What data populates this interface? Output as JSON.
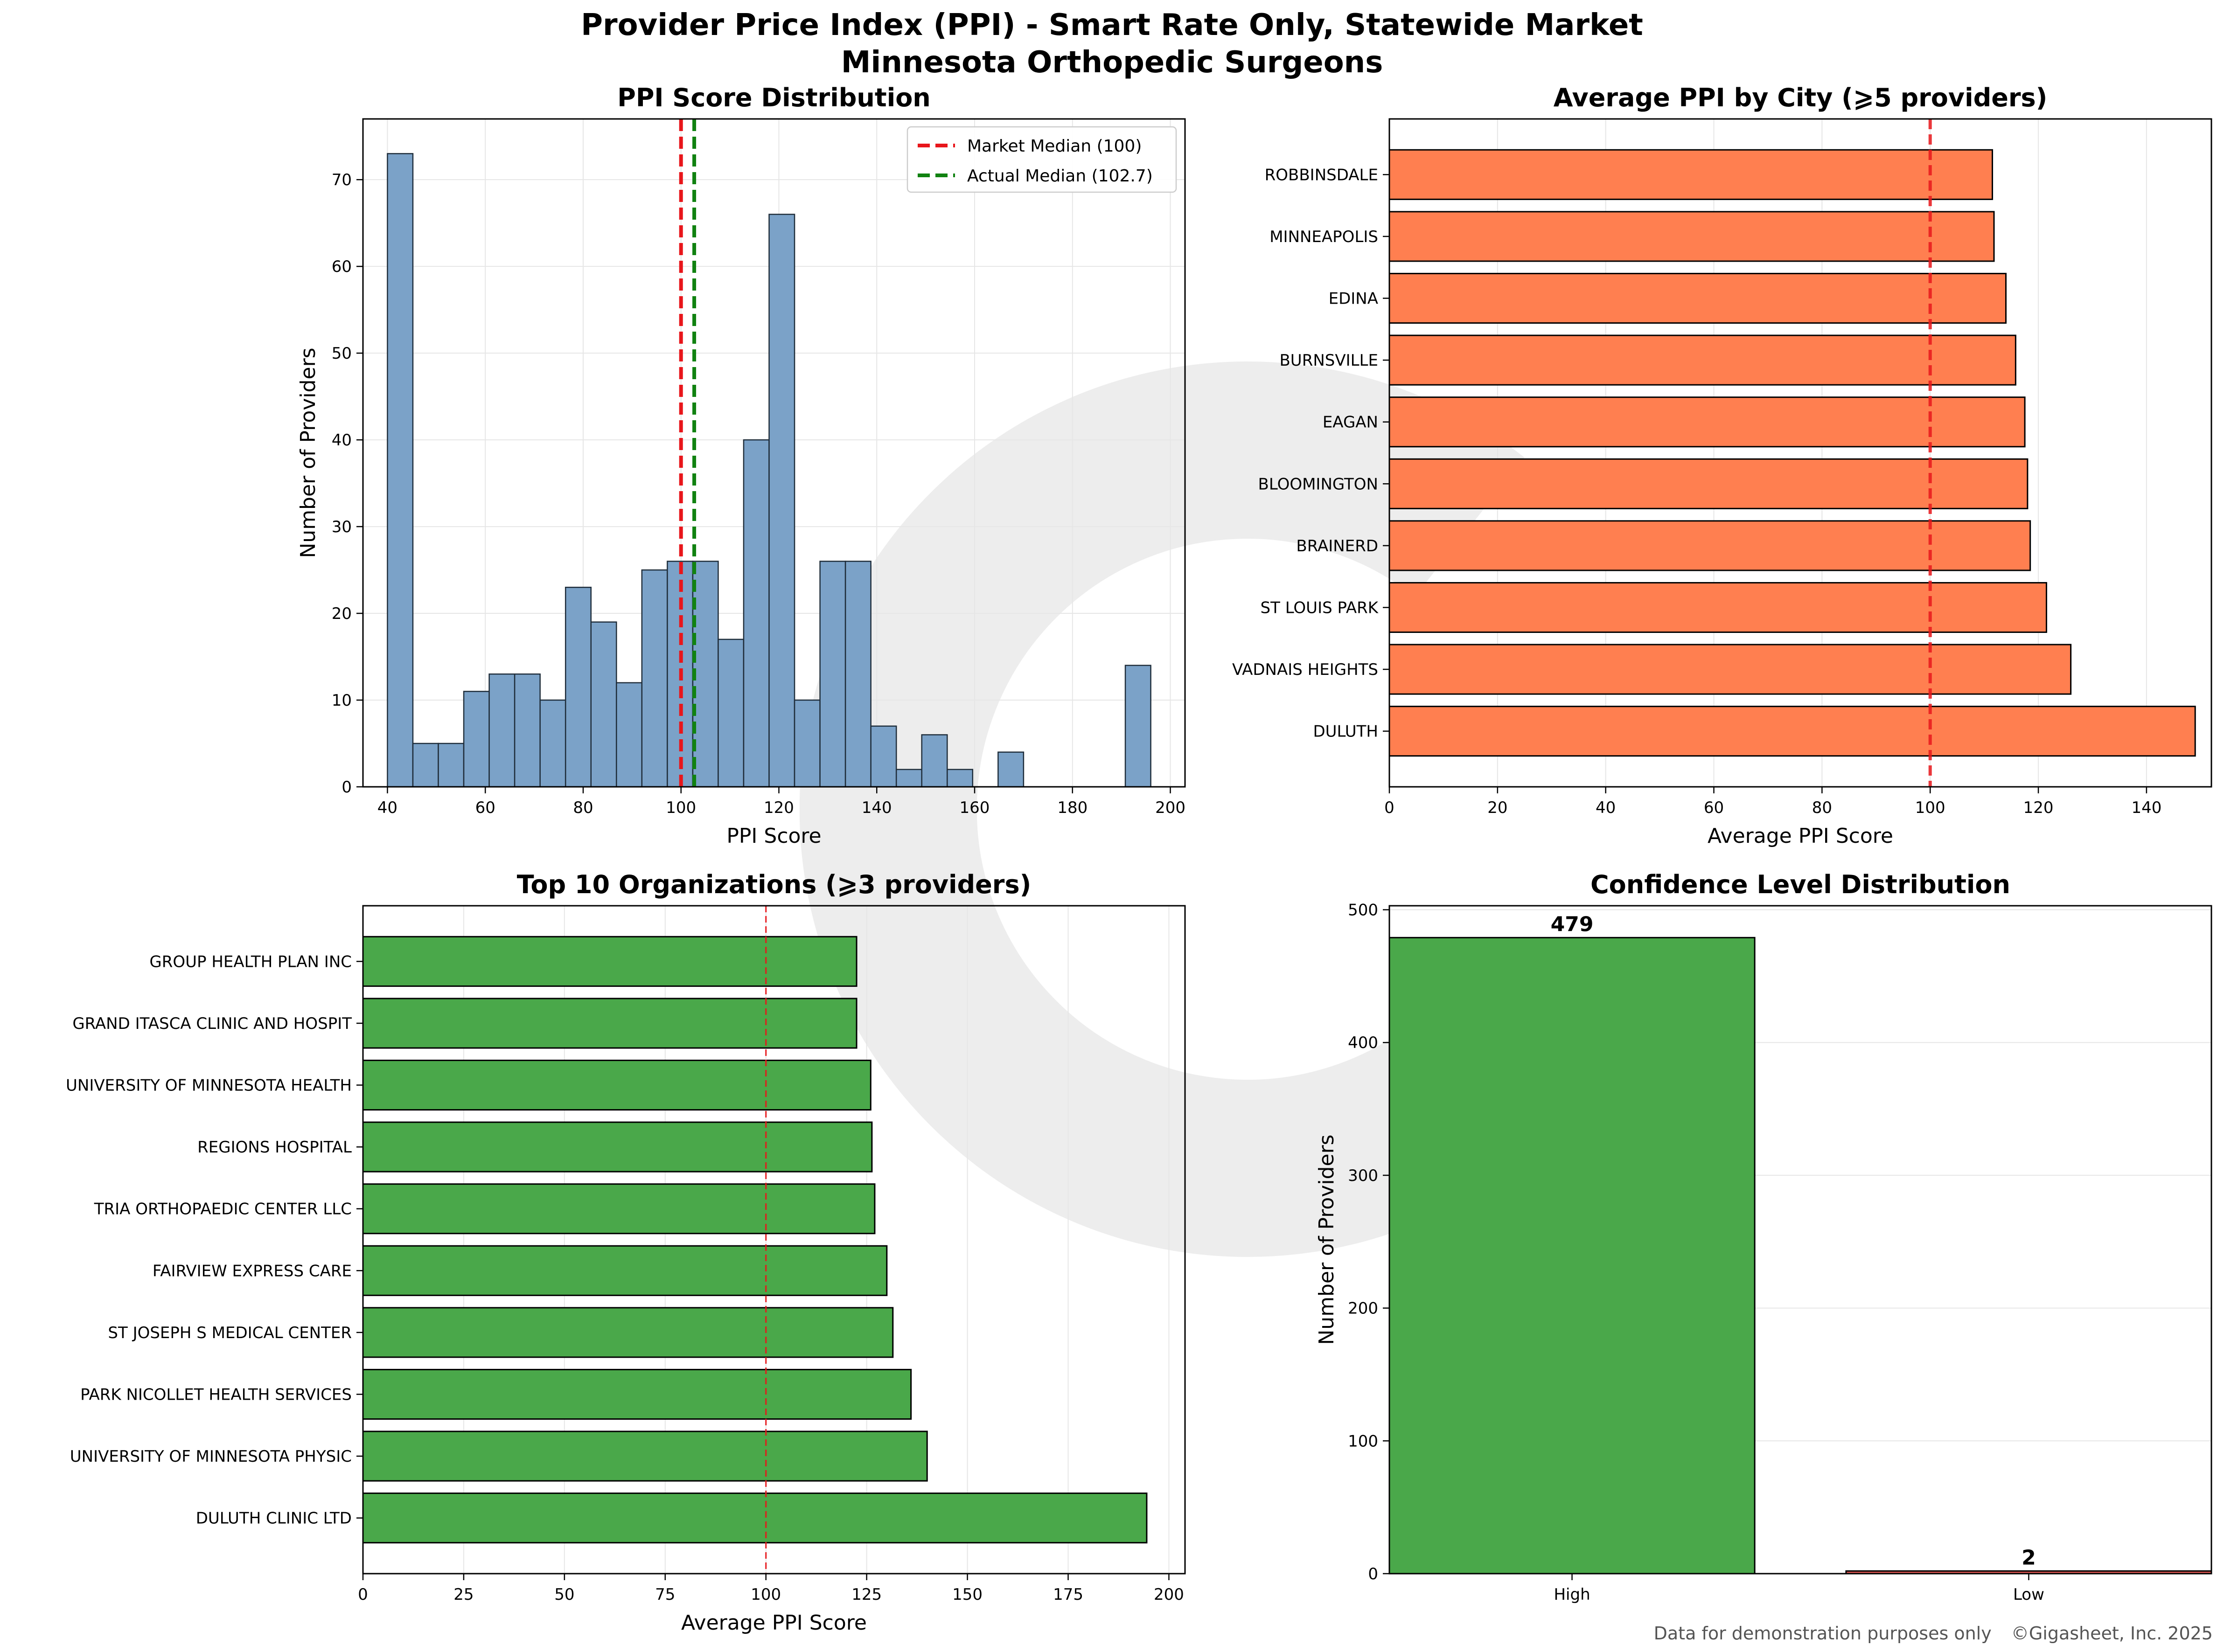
{
  "title": {
    "line1": "Provider Price Index (PPI) - Smart Rate Only, Statewide Market",
    "line2": "Minnesota Orthopedic Surgeons"
  },
  "footer": {
    "disclaimer": "Data for demonstration purposes only",
    "copyright": "©Gigasheet, Inc. 2025"
  },
  "colors": {
    "histogram": "#7ba2c8",
    "city_bars": "#ff7f50",
    "org_bars": "#4aa84a",
    "high_bar": "#4aa84a",
    "low_bar": "#d9534f",
    "market_median": "#e8161b",
    "actual_median": "#118211"
  },
  "chart_data": [
    {
      "type": "bar",
      "subtype": "histogram",
      "title": "PPI Score Distribution",
      "xlabel": "PPI Score",
      "ylabel": "Number of Providers",
      "xlim": [
        35,
        203
      ],
      "ylim": [
        0,
        77
      ],
      "xticks": [
        40,
        60,
        80,
        100,
        120,
        140,
        160,
        180,
        200
      ],
      "yticks": [
        0,
        10,
        20,
        30,
        40,
        50,
        60,
        70
      ],
      "bin_width": 5.2,
      "bin_start": 40,
      "values": [
        73,
        5,
        5,
        11,
        13,
        13,
        10,
        23,
        19,
        12,
        25,
        26,
        26,
        17,
        40,
        66,
        10,
        26,
        26,
        7,
        2,
        6,
        2,
        0,
        4,
        0,
        0,
        0,
        0,
        14
      ],
      "reference_lines": [
        {
          "name": "Market Median (100)",
          "x": 100,
          "color": "#e8161b"
        },
        {
          "name": "Actual Median (102.7)",
          "x": 102.7,
          "color": "#118211"
        }
      ],
      "legend": "top-right",
      "grid": true
    },
    {
      "type": "bar",
      "orientation": "horizontal",
      "title": "Average PPI by City (⩾5 providers)",
      "xlabel": "Average PPI Score",
      "ylabel": "",
      "xlim": [
        0,
        152
      ],
      "xticks": [
        0,
        20,
        40,
        60,
        80,
        100,
        120,
        140
      ],
      "categories": [
        "DULUTH",
        "VADNAIS HEIGHTS",
        "ST LOUIS PARK",
        "BRAINERD",
        "BLOOMINGTON",
        "EAGAN",
        "BURNSVILLE",
        "EDINA",
        "MINNEAPOLIS",
        "ROBBINSDALE"
      ],
      "values": [
        149,
        126,
        121.5,
        118.5,
        118,
        117.5,
        115.8,
        114,
        111.8,
        111.5
      ],
      "reference_lines": [
        {
          "x": 100,
          "color": "#e8161b"
        }
      ],
      "grid": true
    },
    {
      "type": "bar",
      "orientation": "horizontal",
      "title": "Top 10 Organizations (⩾3 providers)",
      "xlabel": "Average PPI Score",
      "ylabel": "",
      "xlim": [
        0,
        204
      ],
      "xticks": [
        0,
        25,
        50,
        75,
        100,
        125,
        150,
        175,
        200
      ],
      "categories": [
        "DULUTH CLINIC LTD",
        "UNIVERSITY OF MINNESOTA PHYSIC",
        "PARK NICOLLET HEALTH SERVICES",
        "ST JOSEPH S MEDICAL CENTER",
        "FAIRVIEW EXPRESS CARE",
        "TRIA ORTHOPAEDIC CENTER LLC",
        "REGIONS HOSPITAL",
        "UNIVERSITY OF MINNESOTA HEALTH",
        "GRAND ITASCA CLINIC AND HOSPIT",
        "GROUP HEALTH PLAN INC"
      ],
      "values": [
        194.5,
        140,
        136,
        131.5,
        130,
        127,
        126.3,
        126,
        122.5,
        122.5
      ],
      "reference_lines": [
        {
          "x": 100,
          "color": "#e8161b"
        }
      ],
      "grid": true
    },
    {
      "type": "bar",
      "title": "Confidence Level Distribution",
      "xlabel": "",
      "ylabel": "Number of Providers",
      "ylim": [
        0,
        503
      ],
      "yticks": [
        0,
        100,
        200,
        300,
        400,
        500
      ],
      "categories": [
        "High",
        "Low"
      ],
      "values": [
        479,
        2
      ],
      "data_labels": [
        "479",
        "2"
      ],
      "grid": true
    }
  ]
}
